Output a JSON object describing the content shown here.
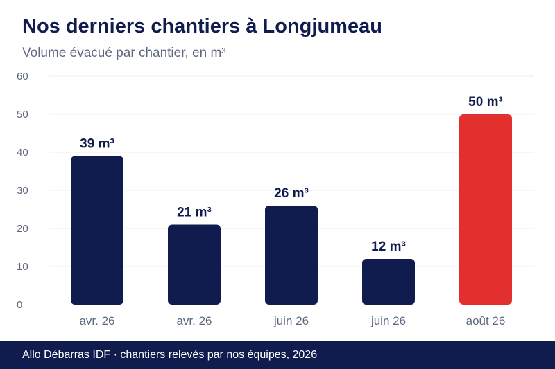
{
  "chart_data": {
    "type": "bar",
    "title": "Nos derniers chantiers à Longjumeau",
    "subtitle": "Volume évacué par chantier, en m³",
    "categories": [
      "avr. 26",
      "avr. 26",
      "juin 26",
      "juin 26",
      "août 26"
    ],
    "values": [
      39,
      21,
      26,
      12,
      50
    ],
    "data_labels": [
      "39 m³",
      "21 m³",
      "26 m³",
      "12 m³",
      "50 m³"
    ],
    "yticks": [
      "0",
      "10",
      "20",
      "30",
      "40",
      "50",
      "60"
    ],
    "ylim": [
      0,
      60
    ],
    "grid": true,
    "colors": {
      "bar": "#0f1c4d",
      "highlight": "#e3302f",
      "grid": "#ececf1",
      "axis": "#c9ccd6",
      "tick_text": "#5f6780",
      "label_text": "#0f1c4d"
    },
    "highlight_index": 4
  },
  "footer": {
    "text": "Allo Débarras IDF · chantiers relevés par nos équipes, 2026"
  }
}
